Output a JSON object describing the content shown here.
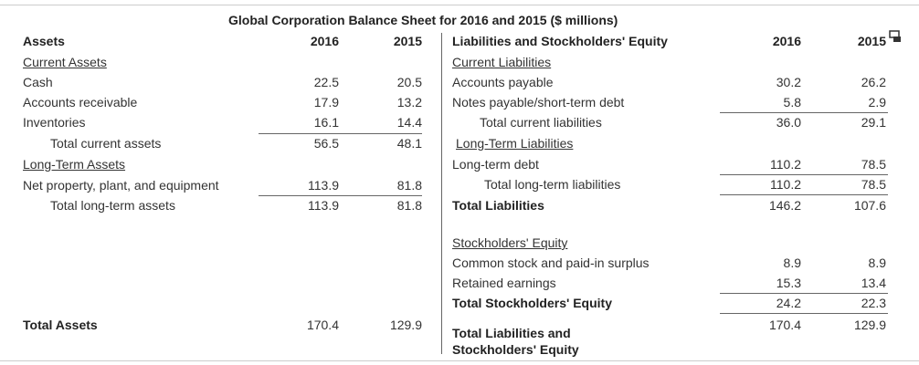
{
  "title": "Global Corporation Balance Sheet for 2016 and 2015 ($ millions)",
  "left": {
    "header": {
      "label": "Assets",
      "years": [
        "2016",
        "2015"
      ]
    },
    "rows": [
      {
        "label": "Current Assets"
      },
      {
        "label": "Cash",
        "values": [
          "22.5",
          "20.5"
        ]
      },
      {
        "label": "Accounts receivable",
        "values": [
          "17.9",
          "13.2"
        ]
      },
      {
        "label": "Inventories",
        "values": [
          "16.1",
          "14.4"
        ]
      },
      {
        "label": "Total current assets",
        "values": [
          "56.5",
          "48.1"
        ]
      },
      {
        "label": "Long-Term Assets"
      },
      {
        "label": "Net property, plant, and equipment",
        "values": [
          "113.9",
          "81.8"
        ]
      },
      {
        "label": "Total long-term assets",
        "values": [
          "113.9",
          "81.8"
        ]
      },
      {
        "label": "Total Assets",
        "values": [
          "170.4",
          "129.9"
        ]
      }
    ]
  },
  "right": {
    "header": {
      "label": "Liabilities and Stockholders' Equity",
      "years": [
        "2016",
        "2015"
      ]
    },
    "rows": [
      {
        "label": "Current Liabilities"
      },
      {
        "label": "Accounts payable",
        "values": [
          "30.2",
          "26.2"
        ]
      },
      {
        "label": "Notes payable/short-term debt",
        "values": [
          "5.8",
          "2.9"
        ]
      },
      {
        "label": "Total current liabilities",
        "values": [
          "36.0",
          "29.1"
        ]
      },
      {
        "label": "Long-Term Liabilities"
      },
      {
        "label": "Long-term debt",
        "values": [
          "110.2",
          "78.5"
        ]
      },
      {
        "label": "Total long-term liabilities",
        "values": [
          "110.2",
          "78.5"
        ]
      },
      {
        "label": "Total Liabilities",
        "values": [
          "146.2",
          "107.6"
        ]
      },
      {
        "label": "Stockholders' Equity"
      },
      {
        "label": "Common stock and paid-in surplus",
        "values": [
          "8.9",
          "8.9"
        ]
      },
      {
        "label": "Retained earnings",
        "values": [
          "15.3",
          "13.4"
        ]
      },
      {
        "label": "Total Stockholders' Equity",
        "values": [
          "24.2",
          "22.3"
        ]
      },
      {
        "label": "Total Liabilities and Stockholders' Equity",
        "values": [
          "170.4",
          "129.9"
        ]
      }
    ]
  }
}
